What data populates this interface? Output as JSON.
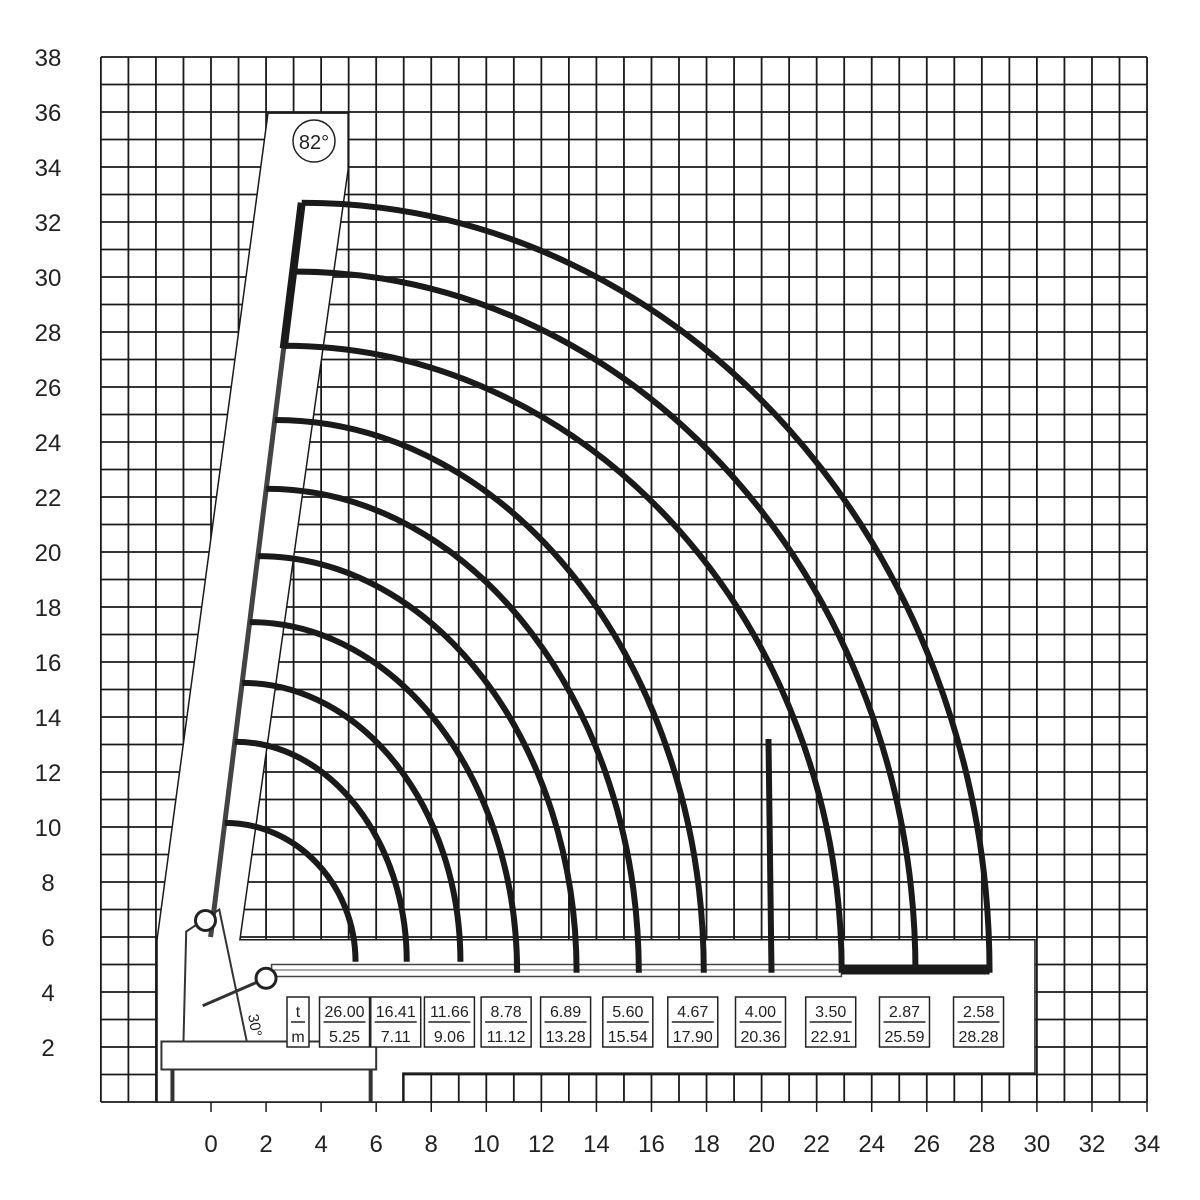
{
  "chart_data": {
    "type": "line",
    "title": "",
    "xlabel": "",
    "ylabel": "",
    "xlim": [
      -4,
      34
    ],
    "ylim": [
      0,
      38
    ],
    "grid": true,
    "x_ticks": [
      "0",
      "2",
      "4",
      "6",
      "8",
      "10",
      "12",
      "14",
      "16",
      "18",
      "20",
      "22",
      "24",
      "26",
      "28",
      "30",
      "32",
      "34"
    ],
    "y_ticks": [
      "2",
      "4",
      "6",
      "8",
      "10",
      "12",
      "14",
      "16",
      "18",
      "20",
      "22",
      "24",
      "26",
      "28",
      "30",
      "32",
      "34",
      "36",
      "38"
    ],
    "boom_angle_label": "82°",
    "knuckle_angle_label": "30°",
    "unit_labels": {
      "load": "t",
      "radius": "m"
    },
    "load_points": [
      {
        "load_t": "26.00",
        "radius_m": "5.25",
        "tip_height_m": 10.15
      },
      {
        "load_t": "16.41",
        "radius_m": "7.11",
        "tip_height_m": 13.1
      },
      {
        "load_t": "11.66",
        "radius_m": "9.06",
        "tip_height_m": 15.24
      },
      {
        "load_t": "8.78",
        "radius_m": "11.12",
        "tip_height_m": 17.45
      },
      {
        "load_t": "6.89",
        "radius_m": "13.28",
        "tip_height_m": 19.85
      },
      {
        "load_t": "5.60",
        "radius_m": "15.54",
        "tip_height_m": 22.3
      },
      {
        "load_t": "4.67",
        "radius_m": "17.90",
        "tip_height_m": 24.8
      },
      {
        "load_t": "4.00",
        "radius_m": "20.36",
        "tip_height_m": 13.2
      },
      {
        "load_t": "3.50",
        "radius_m": "22.91",
        "tip_height_m": 27.5
      },
      {
        "load_t": "2.87",
        "radius_m": "25.59",
        "tip_height_m": 30.2
      },
      {
        "load_t": "2.58",
        "radius_m": "28.28",
        "tip_height_m": 32.7
      }
    ],
    "colors": {
      "line": "#1a1a1a",
      "grid": "#1a1a1a",
      "background": "#ffffff"
    }
  }
}
